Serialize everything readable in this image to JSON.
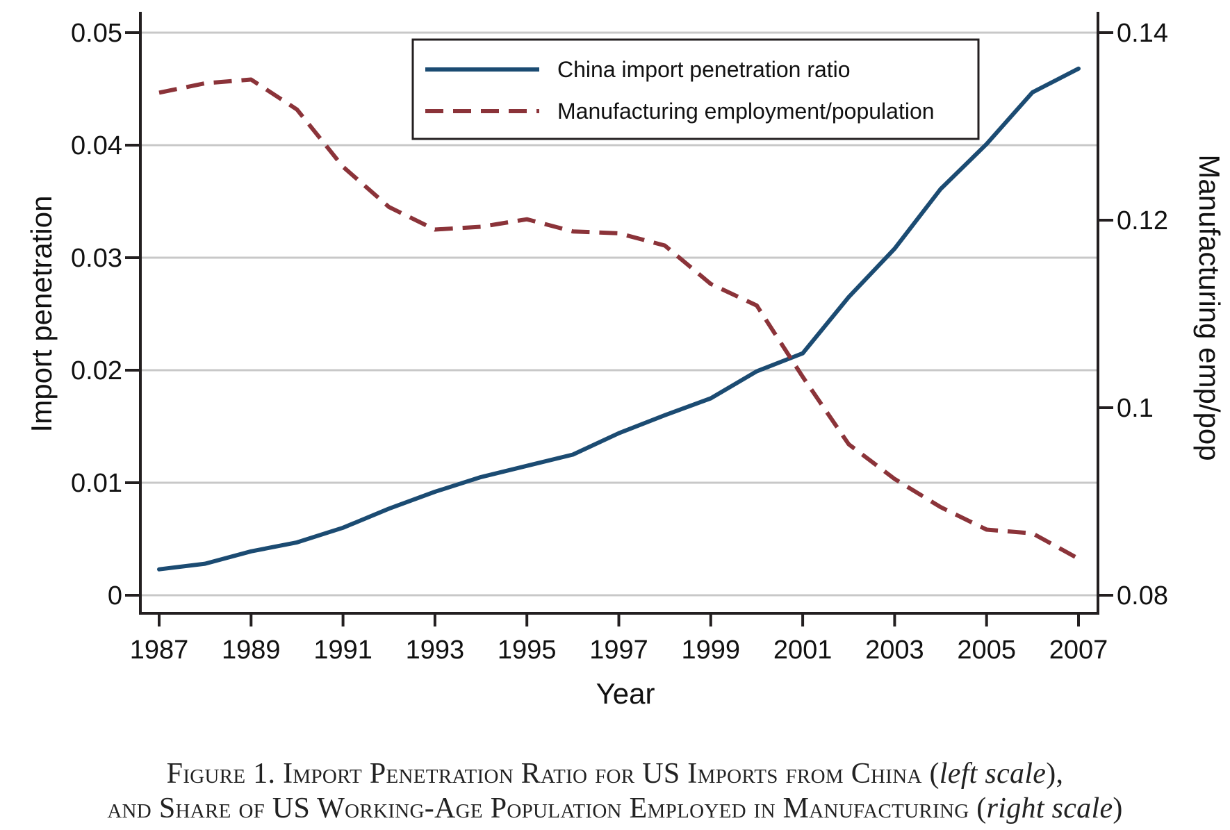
{
  "chart_data": {
    "type": "line",
    "title": "",
    "xlabel": "Year",
    "ylabel": "Import penetration",
    "ylabel_right": "Manufacturing emp/pop",
    "x": [
      1987,
      1988,
      1989,
      1990,
      1991,
      1992,
      1993,
      1994,
      1995,
      1996,
      1997,
      1998,
      1999,
      2000,
      2001,
      2002,
      2003,
      2004,
      2005,
      2006,
      2007
    ],
    "xticks": [
      "1987",
      "1989",
      "1991",
      "1993",
      "1995",
      "1997",
      "1999",
      "2001",
      "2003",
      "2005",
      "2007"
    ],
    "xlim": [
      1987,
      2007
    ],
    "ylim": [
      0,
      0.05
    ],
    "ylim_right": [
      0.08,
      0.14
    ],
    "yticks": [
      "0",
      "0.01",
      "0.02",
      "0.03",
      "0.04",
      "0.05"
    ],
    "yticks_right": [
      "0.08",
      "0.1",
      "0.12",
      "0.14"
    ],
    "grid": true,
    "legend_position": "top-center",
    "series": [
      {
        "name": "China import penetration ratio",
        "axis": "left",
        "style": "solid",
        "color": "#1b4b72",
        "values": [
          0.0023,
          0.0028,
          0.0039,
          0.0047,
          0.006,
          0.0077,
          0.0092,
          0.0105,
          0.0115,
          0.0125,
          0.0144,
          0.016,
          0.0175,
          0.0199,
          0.0215,
          0.0265,
          0.0308,
          0.0361,
          0.0401,
          0.0447,
          0.0468
        ]
      },
      {
        "name": "Manufacturing employment/population",
        "axis": "right",
        "style": "dashed",
        "color": "#8b3339",
        "values": [
          0.1336,
          0.1346,
          0.135,
          0.1318,
          0.1257,
          0.1214,
          0.119,
          0.1193,
          0.1201,
          0.1188,
          0.1186,
          0.1173,
          0.1132,
          0.1109,
          0.1033,
          0.0961,
          0.0924,
          0.0894,
          0.087,
          0.0866,
          0.0839
        ]
      }
    ]
  },
  "caption": {
    "line1_prefix": "Figure 1. Import Penetration Ratio for US Imports from China (",
    "line1_italic": "left scale",
    "line1_suffix": "),",
    "line2_prefix": "and Share of US Working-Age Population Employed in Manufacturing (",
    "line2_italic": "right scale",
    "line2_suffix": ")"
  }
}
